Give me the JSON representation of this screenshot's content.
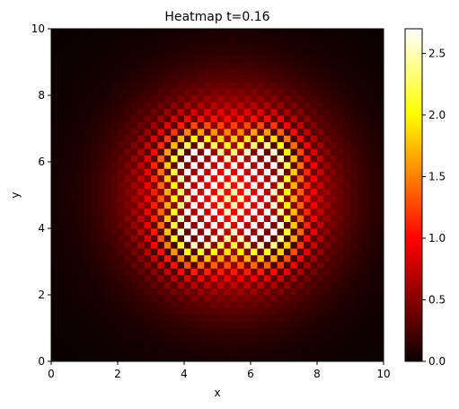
{
  "chart_data": {
    "type": "heatmap",
    "title": "Heatmap t=0.16",
    "xlabel": "x",
    "ylabel": "y",
    "xlim": [
      0,
      10
    ],
    "ylim": [
      0,
      10
    ],
    "x_ticks": [
      "0",
      "2",
      "4",
      "6",
      "8",
      "10"
    ],
    "y_ticks": [
      "0",
      "2",
      "4",
      "6",
      "8",
      "10"
    ],
    "colormap": "hot",
    "colorbar": {
      "min": 0.0,
      "max": 2.7,
      "ticks": [
        "0.0",
        "0.5",
        "1.0",
        "1.5",
        "2.0",
        "2.5"
      ]
    },
    "grid_cells": [
      50,
      50
    ],
    "description_hotspots": [
      {
        "x": 4.3,
        "y": 6.0
      },
      {
        "x": 6.5,
        "y": 6.0
      },
      {
        "x": 4.3,
        "y": 3.9
      },
      {
        "x": 6.5,
        "y": 3.9
      }
    ]
  }
}
